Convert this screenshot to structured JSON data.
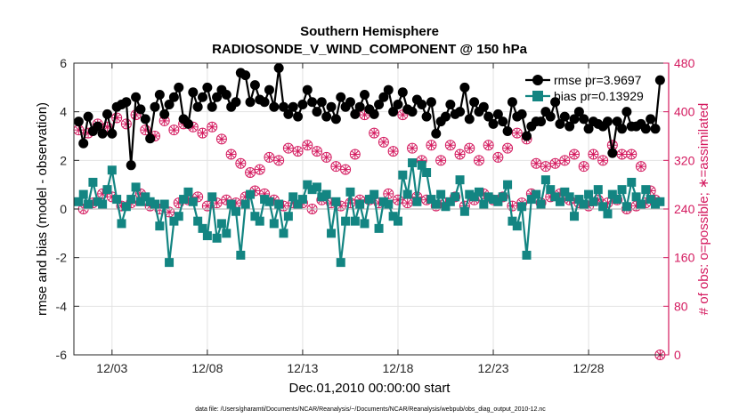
{
  "chart_data": {
    "type": "line",
    "title": "Southern Hemisphere",
    "subtitle": "RADIOSONDE_V_WIND_COMPONENT @ 150 hPa",
    "xlabel": "Dec.01,2010 00:00:00 start",
    "ylabel": "rmse and bias (model - observation)",
    "ylabel_right": "# of obs: o=possible; ∗=assimilated",
    "x_ticks": [
      3,
      8,
      13,
      18,
      23,
      28
    ],
    "x_tick_labels": [
      "12/03",
      "12/08",
      "12/13",
      "12/18",
      "12/23",
      "12/28"
    ],
    "xlim": [
      1,
      32.2
    ],
    "ylim": [
      -6,
      6
    ],
    "y_ticks": [
      -6,
      -4,
      -2,
      0,
      2,
      4,
      6
    ],
    "y_tick_labels": [
      "-6",
      "-4",
      "-2",
      "0",
      "2",
      "4",
      "6"
    ],
    "ylim_right": [
      0,
      480
    ],
    "y_ticks_right": [
      0,
      80,
      160,
      240,
      320,
      400,
      480
    ],
    "y_tick_labels_right": [
      "0",
      "80",
      "160",
      "240",
      "320",
      "400",
      "480"
    ],
    "grid": true,
    "legend_position": "top-right",
    "colors": {
      "rmse": "#000000",
      "bias": "#138582",
      "obs": "#d41a5f",
      "axis_right": "#d41a5f",
      "grid": "#e2e2e2"
    },
    "series": [
      {
        "name": "rmse",
        "legend_label": "rmse pr=3.9697",
        "color": "#000000",
        "x": [
          1.25,
          1.5,
          1.75,
          2.0,
          2.25,
          2.5,
          2.75,
          3.0,
          3.25,
          3.5,
          3.75,
          4.0,
          4.25,
          4.5,
          4.75,
          5.0,
          5.25,
          5.5,
          5.75,
          6.0,
          6.25,
          6.5,
          6.75,
          7.0,
          7.25,
          7.5,
          7.75,
          8.0,
          8.25,
          8.5,
          8.75,
          9.0,
          9.25,
          9.5,
          9.75,
          10.0,
          10.25,
          10.5,
          10.75,
          11.0,
          11.25,
          11.5,
          11.75,
          12.0,
          12.25,
          12.5,
          12.75,
          13.0,
          13.25,
          13.5,
          13.75,
          14.0,
          14.25,
          14.5,
          14.75,
          15.0,
          15.25,
          15.5,
          15.75,
          16.0,
          16.25,
          16.5,
          16.75,
          17.0,
          17.25,
          17.5,
          17.75,
          18.0,
          18.25,
          18.5,
          18.75,
          19.0,
          19.25,
          19.5,
          19.75,
          20.0,
          20.25,
          20.5,
          20.75,
          21.0,
          21.25,
          21.5,
          21.75,
          22.0,
          22.25,
          22.5,
          22.75,
          23.0,
          23.25,
          23.5,
          23.75,
          24.0,
          24.25,
          24.5,
          24.75,
          25.0,
          25.25,
          25.5,
          25.75,
          26.0,
          26.25,
          26.5,
          26.75,
          27.0,
          27.25,
          27.5,
          27.75,
          28.0,
          28.25,
          28.5,
          28.75,
          29.0,
          29.25,
          29.5,
          29.75,
          30.0,
          30.25,
          30.5,
          30.75,
          31.0,
          31.25,
          31.5,
          31.75
        ],
        "values": [
          3.6,
          2.7,
          3.8,
          3.2,
          3.4,
          3.1,
          3.9,
          3.1,
          4.2,
          4.3,
          4.4,
          1.8,
          4.6,
          4.1,
          3.7,
          2.9,
          4.2,
          4.7,
          3.9,
          4.3,
          4.6,
          5.0,
          3.7,
          3.5,
          4.8,
          4.2,
          4.6,
          5.0,
          4.2,
          4.6,
          4.9,
          4.7,
          4.2,
          4.4,
          5.6,
          5.5,
          4.4,
          5.1,
          4.5,
          4.4,
          4.9,
          4.2,
          5.8,
          4.2,
          3.9,
          4.2,
          3.8,
          4.3,
          4.9,
          4.4,
          4.0,
          4.4,
          3.8,
          4.2,
          3.7,
          4.6,
          4.2,
          4.4,
          3.9,
          4.2,
          4.7,
          4.1,
          3.9,
          4.3,
          4.6,
          4.9,
          4.0,
          4.3,
          4.8,
          4.1,
          4.0,
          4.5,
          4.3,
          3.8,
          4.4,
          3.1,
          3.6,
          3.8,
          4.3,
          3.9,
          4.0,
          5.0,
          3.7,
          4.4,
          4.0,
          4.2,
          3.8,
          3.5,
          3.9,
          3.6,
          3.2,
          4.4,
          3.8,
          3.9,
          3.0,
          3.4,
          3.6,
          3.6,
          4.0,
          3.8,
          4.4,
          3.5,
          3.8,
          3.4,
          3.7,
          4.0,
          3.7,
          3.3,
          3.6,
          3.5,
          3.4,
          3.6,
          2.3,
          3.6,
          3.3,
          4.0,
          3.4,
          3.4,
          3.5,
          3.3,
          3.7,
          3.3,
          5.3
        ]
      },
      {
        "name": "bias",
        "legend_label": "bias pr=0.13929",
        "color": "#138582",
        "x": [
          1.25,
          1.5,
          1.75,
          2.0,
          2.25,
          2.5,
          2.75,
          3.0,
          3.25,
          3.5,
          3.75,
          4.0,
          4.25,
          4.5,
          4.75,
          5.0,
          5.25,
          5.5,
          5.75,
          6.0,
          6.25,
          6.5,
          6.75,
          7.0,
          7.25,
          7.5,
          7.75,
          8.0,
          8.25,
          8.5,
          8.75,
          9.0,
          9.25,
          9.5,
          9.75,
          10.0,
          10.25,
          10.5,
          10.75,
          11.0,
          11.25,
          11.5,
          11.75,
          12.0,
          12.25,
          12.5,
          12.75,
          13.0,
          13.25,
          13.5,
          13.75,
          14.0,
          14.25,
          14.5,
          14.75,
          15.0,
          15.25,
          15.5,
          15.75,
          16.0,
          16.25,
          16.5,
          16.75,
          17.0,
          17.25,
          17.5,
          17.75,
          18.0,
          18.25,
          18.5,
          18.75,
          19.0,
          19.25,
          19.5,
          19.75,
          20.0,
          20.25,
          20.5,
          20.75,
          21.0,
          21.25,
          21.5,
          21.75,
          22.0,
          22.25,
          22.5,
          22.75,
          23.0,
          23.25,
          23.5,
          23.75,
          24.0,
          24.25,
          24.5,
          24.75,
          25.0,
          25.25,
          25.5,
          25.75,
          26.0,
          26.25,
          26.5,
          26.75,
          27.0,
          27.25,
          27.5,
          27.75,
          28.0,
          28.25,
          28.5,
          28.75,
          29.0,
          29.25,
          29.5,
          29.75,
          30.0,
          30.25,
          30.5,
          30.75,
          31.0,
          31.25,
          31.5,
          31.75
        ],
        "values": [
          0.3,
          0.6,
          0.2,
          1.1,
          0.3,
          0.2,
          0.8,
          1.6,
          0.4,
          -0.6,
          0.1,
          0.4,
          0.9,
          0.3,
          0.5,
          0.3,
          0.2,
          -0.7,
          0.2,
          -2.2,
          -0.5,
          -0.3,
          0.4,
          0.7,
          0.3,
          -0.5,
          -0.8,
          -1.1,
          0.5,
          -1.2,
          -0.6,
          -1.0,
          0.2,
          -0.1,
          -1.9,
          0.2,
          0.6,
          -0.3,
          -0.5,
          0.4,
          0.3,
          -0.6,
          0.2,
          -1.0,
          -0.3,
          0.5,
          0.2,
          0.4,
          1.0,
          0.8,
          0.9,
          0.5,
          0.6,
          -1.0,
          0.3,
          -2.2,
          -0.5,
          0.7,
          -0.5,
          0.2,
          -0.6,
          0.4,
          0.6,
          -0.8,
          0.3,
          0.2,
          -0.3,
          -0.5,
          1.4,
          0.6,
          1.9,
          0.3,
          1.8,
          1.5,
          0.4,
          0.2,
          0.6,
          0.1,
          0.3,
          0.5,
          1.2,
          -0.1,
          0.6,
          0.5,
          0.7,
          0.2,
          0.5,
          0.4,
          0.3,
          0.5,
          1.0,
          -0.5,
          -0.7,
          0.1,
          -1.9,
          0.4,
          0.6,
          0.2,
          1.2,
          0.8,
          0.5,
          0.3,
          0.7,
          0.5,
          -0.3,
          0.4,
          0.2,
          0.6,
          0.3,
          0.8,
          0.1,
          -0.2,
          0.6,
          0.4,
          0.8,
          0.1,
          1.1,
          0.5,
          0.2,
          0.8,
          0.4,
          0.2,
          0.3
        ]
      }
    ],
    "obs_counts": {
      "x": [
        1.25,
        1.5,
        1.75,
        2.0,
        2.25,
        2.5,
        2.75,
        3.0,
        3.25,
        3.5,
        3.75,
        4.0,
        4.25,
        4.5,
        4.75,
        5.0,
        5.25,
        5.5,
        5.75,
        6.0,
        6.25,
        6.5,
        6.75,
        7.0,
        7.25,
        7.5,
        7.75,
        8.0,
        8.25,
        8.5,
        8.75,
        9.0,
        9.25,
        9.5,
        9.75,
        10.0,
        10.25,
        10.5,
        10.75,
        11.0,
        11.25,
        11.5,
        11.75,
        12.0,
        12.25,
        12.5,
        12.75,
        13.0,
        13.25,
        13.5,
        13.75,
        14.0,
        14.25,
        14.5,
        14.75,
        15.0,
        15.25,
        15.5,
        15.75,
        16.0,
        16.25,
        16.5,
        16.75,
        17.0,
        17.25,
        17.5,
        17.75,
        18.0,
        18.25,
        18.5,
        18.75,
        19.0,
        19.25,
        19.5,
        19.75,
        20.0,
        20.25,
        20.5,
        20.75,
        21.0,
        21.25,
        21.5,
        21.75,
        22.0,
        22.25,
        22.5,
        22.75,
        23.0,
        23.25,
        23.5,
        23.75,
        24.0,
        24.25,
        24.5,
        24.75,
        25.0,
        25.25,
        25.5,
        25.75,
        26.0,
        26.25,
        26.5,
        26.75,
        27.0,
        27.25,
        27.5,
        27.75,
        28.0,
        28.25,
        28.5,
        28.75,
        29.0,
        29.25,
        29.5,
        29.75,
        30.0,
        30.25,
        30.5,
        30.75,
        31.0,
        31.25,
        31.5,
        31.75
      ],
      "possible": [
        370,
        240,
        365,
        250,
        380,
        265,
        375,
        260,
        390,
        245,
        380,
        250,
        395,
        265,
        370,
        245,
        360,
        240,
        385,
        235,
        370,
        250,
        380,
        255,
        375,
        260,
        365,
        245,
        375,
        250,
        355,
        255,
        330,
        250,
        315,
        260,
        300,
        270,
        305,
        265,
        325,
        255,
        320,
        245,
        340,
        250,
        335,
        250,
        345,
        240,
        335,
        255,
        325,
        250,
        310,
        245,
        305,
        250,
        330,
        255,
        395,
        255,
        365,
        250,
        350,
        265,
        335,
        255,
        395,
        250,
        340,
        260,
        320,
        255,
        345,
        245,
        320,
        250,
        345,
        260,
        330,
        245,
        340,
        255,
        320,
        265,
        345,
        255,
        325,
        260,
        340,
        245,
        365,
        250,
        355,
        265,
        315,
        250,
        310,
        260,
        315,
        265,
        320,
        255,
        330,
        250,
        310,
        245,
        330,
        255,
        320,
        250,
        345,
        255,
        330,
        240,
        330,
        245,
        310,
        250,
        270,
        255,
        0
      ],
      "assimilated": [
        370,
        240,
        365,
        250,
        380,
        265,
        375,
        260,
        390,
        245,
        380,
        250,
        395,
        265,
        370,
        245,
        360,
        240,
        385,
        235,
        370,
        250,
        380,
        255,
        375,
        260,
        365,
        245,
        375,
        250,
        355,
        255,
        330,
        250,
        315,
        260,
        300,
        270,
        305,
        265,
        325,
        255,
        320,
        245,
        340,
        250,
        335,
        250,
        345,
        240,
        335,
        255,
        325,
        250,
        310,
        245,
        305,
        250,
        330,
        255,
        395,
        255,
        365,
        250,
        350,
        265,
        335,
        255,
        395,
        250,
        340,
        260,
        320,
        255,
        345,
        245,
        320,
        250,
        345,
        260,
        330,
        245,
        340,
        255,
        320,
        265,
        345,
        255,
        325,
        260,
        340,
        245,
        365,
        250,
        355,
        265,
        315,
        250,
        310,
        260,
        315,
        265,
        320,
        255,
        330,
        250,
        310,
        245,
        330,
        255,
        320,
        250,
        345,
        255,
        330,
        240,
        330,
        245,
        310,
        250,
        270,
        255,
        0
      ]
    }
  },
  "footer": {
    "data_file": "data file: /Users/gharamti/Documents/NCAR/Reanalysis/~/Documents/NCAR/Reanalysis/webpub/obs_diag_output_2010-12.nc"
  }
}
